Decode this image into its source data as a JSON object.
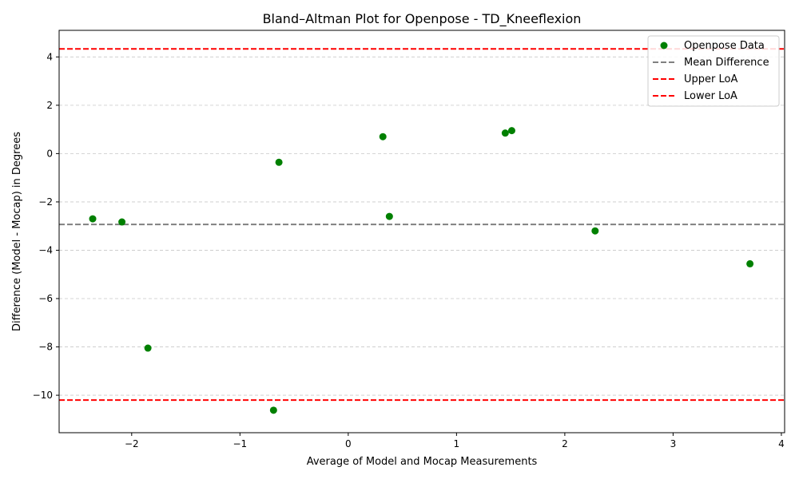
{
  "chart_data": {
    "type": "scatter",
    "title": "Bland–Altman Plot for Openpose - TD_Kneeflexion",
    "xlabel": "Average of Model and Mocap Measurements",
    "ylabel": "Difference (Model - Mocap) in Degrees",
    "xlim": [
      -2.67,
      4.03
    ],
    "ylim": [
      -11.55,
      5.1
    ],
    "xticks": [
      -2,
      -1,
      0,
      1,
      2,
      3,
      4
    ],
    "yticks": [
      -10,
      -8,
      -6,
      -4,
      -2,
      0,
      2,
      4
    ],
    "grid": "y-dashed",
    "legend_position": "top-right",
    "series": [
      {
        "name": "Openpose Data",
        "kind": "points",
        "color": "#008000",
        "points": [
          {
            "x": -2.36,
            "y": -2.7
          },
          {
            "x": -2.09,
            "y": -2.83
          },
          {
            "x": -1.85,
            "y": -8.05
          },
          {
            "x": -0.69,
            "y": -10.62
          },
          {
            "x": -0.64,
            "y": -0.36
          },
          {
            "x": 0.32,
            "y": 0.7
          },
          {
            "x": 0.38,
            "y": -2.6
          },
          {
            "x": 1.45,
            "y": 0.85
          },
          {
            "x": 1.51,
            "y": 0.95
          },
          {
            "x": 2.28,
            "y": -3.2
          },
          {
            "x": 3.71,
            "y": -4.56
          }
        ]
      }
    ],
    "reference_lines": [
      {
        "name": "Mean Difference",
        "y": -2.93,
        "color": "#808080"
      },
      {
        "name": "Upper LoA",
        "y": 4.33,
        "color": "#ff0000"
      },
      {
        "name": "Lower LoA",
        "y": -10.2,
        "color": "#ff0000"
      }
    ]
  }
}
